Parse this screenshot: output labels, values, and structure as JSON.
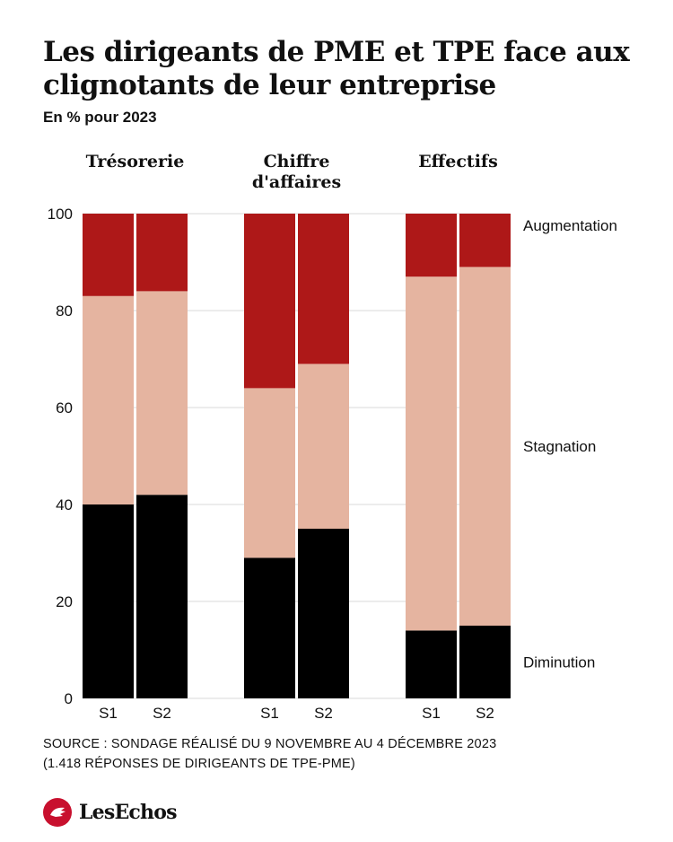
{
  "title": "Les dirigeants de PME et TPE face aux clignotants de leur entreprise",
  "subtitle": "En % pour 2023",
  "source_lines": [
    "SOURCE :  SONDAGE RÉALISÉ DU 9 NOVEMBRE AU 4 DÉCEMBRE 2023",
    "(1.418 RÉPONSES DE DIRIGEANTS DE TPE-PME)"
  ],
  "brand": {
    "name": "LesEchos",
    "logo_icon": "les-echos-logo-icon",
    "logo_color": "#c8102e"
  },
  "chart_data": {
    "type": "bar",
    "stacked": true,
    "ylim": [
      0,
      100
    ],
    "yticks": [
      0,
      20,
      40,
      60,
      80,
      100
    ],
    "grid": true,
    "legend_position": "right",
    "groups": [
      {
        "title_lines": [
          "Trésorerie"
        ],
        "categories": [
          "S1",
          "S2"
        ]
      },
      {
        "title_lines": [
          "Chiffre",
          "d'affaires"
        ],
        "categories": [
          "S1",
          "S2"
        ]
      },
      {
        "title_lines": [
          "Effectifs"
        ],
        "categories": [
          "S1",
          "S2"
        ]
      }
    ],
    "series": [
      {
        "name": "Diminution",
        "color": "#000000",
        "values": [
          [
            40,
            42
          ],
          [
            29,
            35
          ],
          [
            14,
            15
          ]
        ]
      },
      {
        "name": "Stagnation",
        "color": "#e5b4a0",
        "values": [
          [
            43,
            42
          ],
          [
            35,
            34
          ],
          [
            73,
            74
          ]
        ]
      },
      {
        "name": "Augmentation",
        "color": "#ae1818",
        "values": [
          [
            17,
            16
          ],
          [
            36,
            31
          ],
          [
            13,
            11
          ]
        ]
      }
    ]
  }
}
